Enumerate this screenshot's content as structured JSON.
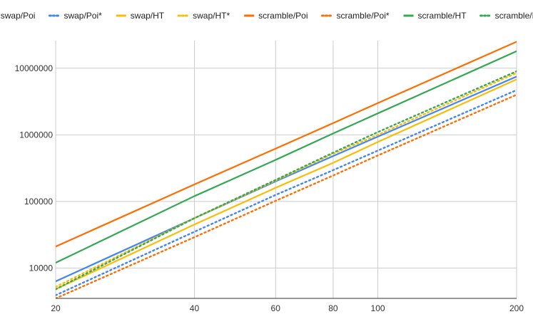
{
  "chart_data": {
    "type": "line",
    "title": "",
    "xlabel": "",
    "ylabel": "",
    "x_scale": "log",
    "y_scale": "log",
    "xlim": [
      20,
      200
    ],
    "ylim": [
      3500,
      26000000
    ],
    "x_ticks": [
      20,
      40,
      60,
      80,
      100,
      200
    ],
    "x_tick_labels": [
      "20",
      "40",
      "60",
      "80",
      "100",
      "200"
    ],
    "y_ticks": [
      10000,
      100000,
      1000000,
      10000000
    ],
    "y_tick_labels": [
      "10000",
      "100000",
      "1000000",
      "10000000"
    ],
    "grid": true,
    "legend_position": "top",
    "x": [
      20,
      40,
      60,
      80,
      100,
      200
    ],
    "series": [
      {
        "name": "swap/Poi",
        "color": "#4285f4",
        "dash": "solid",
        "values": [
          6300,
          56000,
          200000,
          480000,
          940000,
          7500000
        ]
      },
      {
        "name": "swap/Poi*",
        "color": "#4285f4",
        "dash": "dotted",
        "values": [
          3900,
          35000,
          125000,
          295000,
          580000,
          4700000
        ]
      },
      {
        "name": "swap/HT",
        "color": "#fbbc04",
        "dash": "solid",
        "values": [
          4800,
          45000,
          160000,
          380000,
          780000,
          6800000
        ]
      },
      {
        "name": "swap/HT*",
        "color": "#fbbc04",
        "dash": "dotted",
        "values": [
          5200,
          56000,
          205000,
          520000,
          1000000,
          8500000
        ]
      },
      {
        "name": "scramble/Poi",
        "color": "#ff6d01",
        "dash": "solid",
        "values": [
          21000,
          180000,
          620000,
          1500000,
          3000000,
          25000000
        ]
      },
      {
        "name": "scramble/Poi*",
        "color": "#ff6d01",
        "dash": "dotted",
        "values": [
          3500,
          29000,
          102000,
          245000,
          490000,
          4000000
        ]
      },
      {
        "name": "scramble/HT",
        "color": "#34a853",
        "dash": "solid",
        "values": [
          12000,
          120000,
          420000,
          1050000,
          2100000,
          18000000
        ]
      },
      {
        "name": "scramble/HT*",
        "color": "#34a853",
        "dash": "dotted",
        "values": [
          4800,
          56000,
          210000,
          540000,
          1100000,
          9000000
        ]
      }
    ]
  }
}
